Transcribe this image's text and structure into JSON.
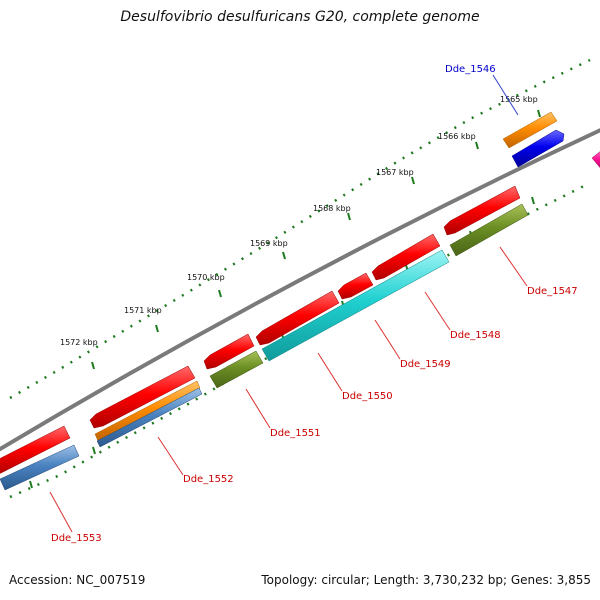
{
  "title": "Desulfovibrio desulfuricans G20, complete genome",
  "footer": {
    "accession": "Accession: NC_007519",
    "summary": "Topology: circular; Length: 3,730,232 bp; Genes: 3,855"
  },
  "colors": {
    "backbone": "#7f7f7f",
    "tick": "#1e7a1e",
    "label_red": "#cc0000",
    "label_blue": "#0000cc",
    "leader_red": "#dd3333",
    "leader_blue": "#3344cc"
  },
  "kbp_labels": [
    "1565 kbp",
    "1566 kbp",
    "1567 kbp",
    "1568 kbp",
    "1569 kbp",
    "1570 kbp",
    "1571 kbp",
    "1572 kbp"
  ],
  "gene_labels": [
    "Dde_1546",
    "Dde_1547",
    "Dde_1548",
    "Dde_1549",
    "Dde_1550",
    "Dde_1551",
    "Dde_1552",
    "Dde_1553"
  ]
}
